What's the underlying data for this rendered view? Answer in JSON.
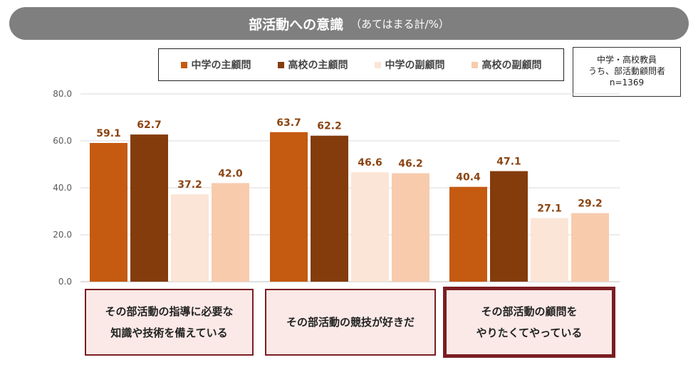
{
  "title": {
    "main": "部活動への意識",
    "sub": "（あてはまる計/%）"
  },
  "legend": [
    {
      "label": "中学の主顧問",
      "color": "#c55a11"
    },
    {
      "label": "高校の主顧問",
      "color": "#843c0c"
    },
    {
      "label": "中学の副顧問",
      "color": "#fbe5d6"
    },
    {
      "label": "高校の副顧問",
      "color": "#f8cbad"
    }
  ],
  "sample": {
    "line1": "中学・高校教員",
    "line2": "うち、部活動顧問者",
    "line3": "n=1369"
  },
  "categories": [
    {
      "line1": "その部活動の指導に必要な",
      "line2": "知識や技術を備えている",
      "highlight": false
    },
    {
      "line1": "その部活動の競技が好きだ",
      "line2": "",
      "highlight": false
    },
    {
      "line1": "その部活動の顧問を",
      "line2": "やりたくてやっている",
      "highlight": true
    }
  ],
  "chart_data": {
    "type": "bar",
    "title": "部活動への意識（あてはまる計/%）",
    "categories": [
      "その部活動の指導に必要な知識や技術を備えている",
      "その部活動の競技が好きだ",
      "その部活動の顧問をやりたくてやっている"
    ],
    "series": [
      {
        "name": "中学の主顧問",
        "values": [
          59.1,
          63.7,
          40.4
        ],
        "color": "#c55a11"
      },
      {
        "name": "高校の主顧問",
        "values": [
          62.7,
          62.2,
          47.1
        ],
        "color": "#843c0c"
      },
      {
        "name": "中学の副顧問",
        "values": [
          37.2,
          46.6,
          27.1
        ],
        "color": "#fbe5d6"
      },
      {
        "name": "高校の副顧問",
        "values": [
          42.0,
          46.2,
          29.2
        ],
        "color": "#f8cbad"
      }
    ],
    "ylim": [
      0,
      80
    ],
    "yticks": [
      "0.0",
      "20.0",
      "40.0",
      "60.0",
      "80.0"
    ],
    "label_color": "#8b4513",
    "grid": true
  }
}
